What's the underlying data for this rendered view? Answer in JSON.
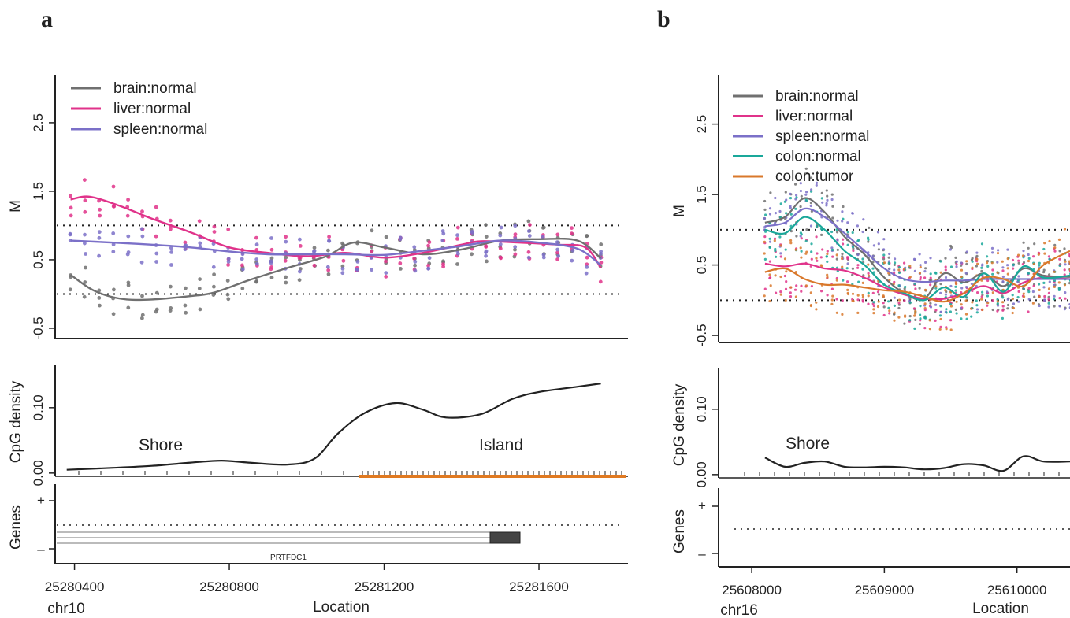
{
  "panels": {
    "a": {
      "letter": "a",
      "chrom": "chr10",
      "xlabel": "Location",
      "m_axis_label": "M",
      "density_axis_label": "CpG density",
      "genes_axis_label": "Genes",
      "shore_label": "Shore",
      "island_label": "Island",
      "gene_name": "PRTFDC1",
      "strand_plus": "+",
      "strand_minus": "–"
    },
    "b": {
      "letter": "b",
      "chrom": "chr16",
      "xlabel": "Location",
      "m_axis_label": "M",
      "density_axis_label": "CpG density",
      "genes_axis_label": "Genes",
      "shore_label": "Shore",
      "strand_plus": "+",
      "strand_minus": "–"
    }
  },
  "chart_data": [
    {
      "id": "a-methylation",
      "type": "line",
      "ylabel": "M",
      "xlabel": "Location",
      "xlim": [
        25280350,
        25281830
      ],
      "ylim": [
        -0.65,
        3.2
      ],
      "x_ticks": [
        25280400,
        25280800,
        25281200,
        25281600
      ],
      "y_ticks": [
        -0.5,
        0.5,
        1.5,
        2.5
      ],
      "y_tick_labels": [
        "-0.5",
        "0.5",
        "1.5",
        "2.5"
      ],
      "reference_lines": [
        0,
        1
      ],
      "legend_position": "top-left",
      "series": [
        {
          "name": "brain:normal",
          "color": "#707070",
          "x": [
            25280390,
            25280450,
            25280520,
            25280600,
            25280700,
            25280760,
            25280850,
            25280950,
            25281050,
            25281120,
            25281200,
            25281300,
            25281400,
            25281500,
            25281600,
            25281700,
            25281760
          ],
          "y": [
            0.28,
            0.05,
            -0.07,
            -0.08,
            -0.03,
            0.02,
            0.2,
            0.38,
            0.55,
            0.75,
            0.68,
            0.58,
            0.65,
            0.78,
            0.8,
            0.78,
            0.52
          ]
        },
        {
          "name": "liver:normal",
          "color": "#e0328a",
          "x": [
            25280390,
            25280440,
            25280520,
            25280600,
            25280700,
            25280800,
            25280900,
            25281000,
            25281100,
            25281200,
            25281300,
            25281400,
            25281450,
            25281550,
            25281650,
            25281720,
            25281760
          ],
          "y": [
            1.38,
            1.42,
            1.28,
            1.1,
            0.9,
            0.68,
            0.6,
            0.55,
            0.6,
            0.53,
            0.6,
            0.72,
            0.77,
            0.75,
            0.72,
            0.68,
            0.38
          ]
        },
        {
          "name": "spleen:normal",
          "color": "#7b70c8",
          "x": [
            25280390,
            25280500,
            25280600,
            25280700,
            25280800,
            25280900,
            25281000,
            25281100,
            25281200,
            25281300,
            25281400,
            25281500,
            25281600,
            25281700,
            25281760
          ],
          "y": [
            0.78,
            0.75,
            0.72,
            0.68,
            0.62,
            0.58,
            0.58,
            0.58,
            0.57,
            0.63,
            0.7,
            0.78,
            0.75,
            0.66,
            0.42
          ]
        }
      ]
    },
    {
      "id": "a-cpg-density",
      "type": "line",
      "ylabel": "CpG density",
      "xlim": [
        25280350,
        25281830
      ],
      "ylim": [
        -0.005,
        0.16
      ],
      "y_ticks": [
        0.0,
        0.1
      ],
      "y_tick_labels": [
        "0.00",
        "0.10"
      ],
      "series": [
        {
          "name": "",
          "color": "#222222",
          "x": [
            25280380,
            25280500,
            25280600,
            25280700,
            25280780,
            25280850,
            25280950,
            25281020,
            25281080,
            25281150,
            25281230,
            25281300,
            25281360,
            25281450,
            25281530,
            25281600,
            25281700,
            25281760
          ],
          "y": [
            0.005,
            0.008,
            0.011,
            0.016,
            0.019,
            0.016,
            0.013,
            0.022,
            0.06,
            0.092,
            0.107,
            0.097,
            0.085,
            0.09,
            0.113,
            0.124,
            0.132,
            0.137
          ]
        }
      ]
    },
    {
      "id": "b-methylation",
      "type": "line",
      "ylabel": "M",
      "xlabel": "Location",
      "xlim": [
        25607750,
        25610400
      ],
      "ylim": [
        -0.6,
        3.2
      ],
      "x_ticks": [
        25608000,
        25609000,
        25610000
      ],
      "y_ticks": [
        -0.5,
        0.5,
        1.5,
        2.5
      ],
      "y_tick_labels": [
        "-0.5",
        "0.5",
        "1.5",
        "2.5"
      ],
      "reference_lines": [
        0,
        1
      ],
      "legend_position": "top-left",
      "series": [
        {
          "name": "brain:normal",
          "color": "#707070",
          "x": [
            25608100,
            25608250,
            25608400,
            25608550,
            25608700,
            25608850,
            25609000,
            25609150,
            25609300,
            25609450,
            25609600,
            25609750,
            25609900,
            25610050,
            25610200,
            25610400
          ],
          "y": [
            1.1,
            1.18,
            1.45,
            1.25,
            0.9,
            0.65,
            0.32,
            0.1,
            0.02,
            0.38,
            0.25,
            0.38,
            0.2,
            0.45,
            0.35,
            0.33
          ]
        },
        {
          "name": "liver:normal",
          "color": "#e0328a",
          "x": [
            25608100,
            25608250,
            25608400,
            25608550,
            25608700,
            25608850,
            25609000,
            25609150,
            25609300,
            25609450,
            25609600,
            25609750,
            25609900,
            25610050,
            25610200,
            25610400
          ],
          "y": [
            0.52,
            0.48,
            0.52,
            0.45,
            0.42,
            0.32,
            0.18,
            0.08,
            0.02,
            0.02,
            0.1,
            0.2,
            0.1,
            0.25,
            0.32,
            0.3
          ]
        },
        {
          "name": "spleen:normal",
          "color": "#7b70c8",
          "x": [
            25608100,
            25608250,
            25608400,
            25608550,
            25608700,
            25608850,
            25609000,
            25609150,
            25609300,
            25609450,
            25609600,
            25609750,
            25609900,
            25610050,
            25610200,
            25610400
          ],
          "y": [
            1.05,
            1.1,
            1.3,
            1.18,
            0.95,
            0.7,
            0.45,
            0.3,
            0.26,
            0.28,
            0.28,
            0.3,
            0.3,
            0.3,
            0.3,
            0.3
          ]
        },
        {
          "name": "colon:normal",
          "color": "#1aa89a",
          "x": [
            25608100,
            25608250,
            25608400,
            25608550,
            25608700,
            25608850,
            25609000,
            25609150,
            25609300,
            25609450,
            25609600,
            25609750,
            25609900,
            25610050,
            25610200,
            25610400
          ],
          "y": [
            1.0,
            0.95,
            1.18,
            1.0,
            0.7,
            0.5,
            0.22,
            0.1,
            0.0,
            0.18,
            0.05,
            0.38,
            0.12,
            0.48,
            0.32,
            0.35
          ]
        },
        {
          "name": "colon:tumor",
          "color": "#d9782b",
          "x": [
            25608100,
            25608250,
            25608400,
            25608550,
            25608700,
            25608850,
            25609000,
            25609150,
            25609300,
            25609450,
            25609600,
            25609750,
            25609900,
            25610050,
            25610200,
            25610400
          ],
          "y": [
            0.4,
            0.45,
            0.3,
            0.22,
            0.22,
            0.18,
            0.14,
            0.12,
            0.05,
            -0.02,
            0.1,
            0.32,
            0.3,
            0.2,
            0.5,
            0.7
          ]
        }
      ]
    },
    {
      "id": "b-cpg-density",
      "type": "line",
      "ylabel": "CpG density",
      "xlim": [
        25607750,
        25610400
      ],
      "ylim": [
        -0.005,
        0.16
      ],
      "y_ticks": [
        0.0,
        0.1
      ],
      "y_tick_labels": [
        "0.00",
        "0.10"
      ],
      "series": [
        {
          "name": "",
          "color": "#222222",
          "x": [
            25608100,
            25608250,
            25608400,
            25608550,
            25608700,
            25608850,
            25609000,
            25609150,
            25609300,
            25609450,
            25609600,
            25609750,
            25609900,
            25610050,
            25610200,
            25610400
          ],
          "y": [
            0.026,
            0.012,
            0.018,
            0.02,
            0.012,
            0.011,
            0.012,
            0.011,
            0.008,
            0.01,
            0.016,
            0.014,
            0.006,
            0.028,
            0.02,
            0.02
          ]
        }
      ]
    }
  ],
  "colors": {
    "brain": "#707070",
    "liver": "#e0328a",
    "spleen": "#7b70c8",
    "colon_normal": "#1aa89a",
    "colon_tumor": "#d9782b",
    "island_track": "#e07a22",
    "gene_exon": "#444444"
  }
}
